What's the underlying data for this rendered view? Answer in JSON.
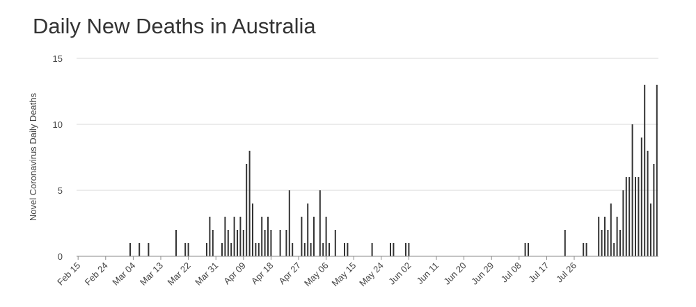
{
  "chart_data": {
    "type": "bar",
    "title": "Daily New Deaths in Australia",
    "xlabel": "",
    "ylabel": "Novel Coronavirus Daily Deaths",
    "ylim": [
      0,
      15
    ],
    "yticks": [
      "0",
      "5",
      "10",
      "15"
    ],
    "grid": true,
    "legend": "none",
    "bar_color": "#333333",
    "grid_color": "#d8d8d8",
    "x_tick_labels": [
      "Feb 15",
      "Feb 24",
      "Mar 04",
      "Mar 13",
      "Mar 22",
      "Mar 31",
      "Apr 09",
      "Apr 18",
      "Apr 27",
      "May 06",
      "May 15",
      "May 24",
      "Jun 02",
      "Jun 11",
      "Jun 20",
      "Jun 29",
      "Jul 08",
      "Jul 17",
      "Jul 26"
    ],
    "start_date": "Feb 15",
    "values": [
      0,
      0,
      0,
      0,
      0,
      0,
      0,
      0,
      0,
      0,
      0,
      0,
      0,
      0,
      0,
      0,
      0,
      1,
      0,
      0,
      1,
      0,
      0,
      1,
      0,
      0,
      0,
      0,
      0,
      0,
      0,
      0,
      2,
      0,
      0,
      1,
      1,
      0,
      0,
      0,
      0,
      0,
      1,
      3,
      2,
      0,
      0,
      1,
      3,
      2,
      1,
      3,
      2,
      3,
      2,
      7,
      8,
      4,
      1,
      1,
      3,
      2,
      3,
      2,
      0,
      0,
      2,
      0,
      2,
      5,
      1,
      0,
      0,
      3,
      1,
      4,
      1,
      3,
      0,
      5,
      1,
      3,
      1,
      0,
      2,
      0,
      0,
      1,
      1,
      0,
      0,
      0,
      0,
      0,
      0,
      0,
      1,
      0,
      0,
      0,
      0,
      0,
      1,
      1,
      0,
      0,
      0,
      1,
      1,
      0,
      0,
      0,
      0,
      0,
      0,
      0,
      0,
      0,
      0,
      0,
      0,
      0,
      0,
      0,
      0,
      0,
      0,
      0,
      0,
      0,
      0,
      0,
      0,
      0,
      0,
      0,
      0,
      0,
      0,
      0,
      0,
      0,
      0,
      0,
      0,
      0,
      1,
      1,
      0,
      0,
      0,
      0,
      0,
      0,
      0,
      0,
      0,
      0,
      0,
      2,
      0,
      0,
      0,
      0,
      0,
      1,
      1,
      0,
      0,
      0,
      3,
      2,
      3,
      2,
      4,
      1,
      3,
      2,
      5,
      6,
      6,
      10,
      6,
      6,
      9,
      13,
      8,
      4,
      7,
      13
    ]
  }
}
